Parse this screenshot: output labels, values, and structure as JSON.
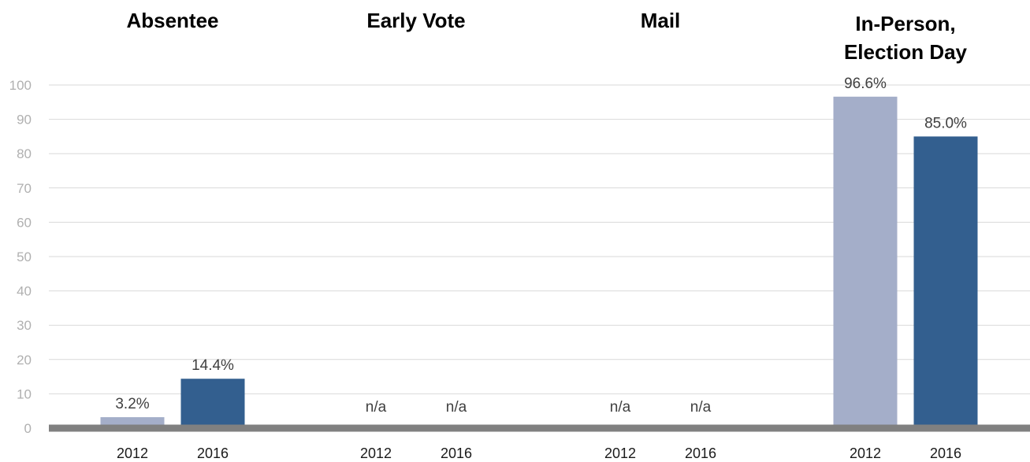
{
  "chart_data": {
    "type": "bar",
    "groups": [
      {
        "title": [
          "Absentee"
        ],
        "bars": [
          {
            "x_label": "2012",
            "value": 3.2,
            "label": "3.2%",
            "color": "#a4aec9"
          },
          {
            "x_label": "2016",
            "value": 14.4,
            "label": "14.4%",
            "color": "#335f8f"
          }
        ]
      },
      {
        "title": [
          "Early Vote"
        ],
        "bars": [
          {
            "x_label": "2012",
            "value": null,
            "label": "n/a",
            "color": "#a4aec9"
          },
          {
            "x_label": "2016",
            "value": null,
            "label": "n/a",
            "color": "#335f8f"
          }
        ]
      },
      {
        "title": [
          "Mail"
        ],
        "bars": [
          {
            "x_label": "2012",
            "value": null,
            "label": "n/a",
            "color": "#a4aec9"
          },
          {
            "x_label": "2016",
            "value": null,
            "label": "n/a",
            "color": "#335f8f"
          }
        ]
      },
      {
        "title": [
          "In-Person,",
          "Election Day"
        ],
        "bars": [
          {
            "x_label": "2012",
            "value": 96.6,
            "label": "96.6%",
            "color": "#a4aec9"
          },
          {
            "x_label": "2016",
            "value": 85.0,
            "label": "85.0%",
            "color": "#335f8f"
          }
        ]
      }
    ],
    "y_ticks": [
      "0",
      "10",
      "20",
      "30",
      "40",
      "50",
      "60",
      "70",
      "80",
      "90",
      "100"
    ],
    "ylim": [
      0,
      100
    ],
    "grid": true,
    "legend": "none"
  }
}
